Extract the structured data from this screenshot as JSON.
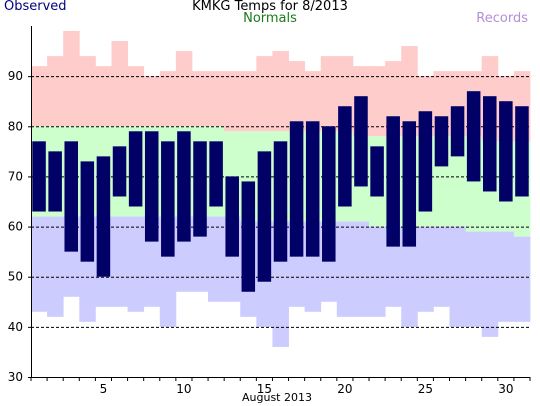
{
  "header": {
    "title": "KMKG Temps for 8/2013",
    "observed_label": "Observed",
    "normals_label": "Normals",
    "records_label": "Records"
  },
  "colors": {
    "observed": "#000066",
    "normals": "#ccffcc",
    "records": "#ffcccc",
    "record_low_band": "#ccccff",
    "grid": "#000000"
  },
  "chart_data": {
    "type": "bar",
    "title": "KMKG Temps for 8/2013",
    "xlabel": "August 2013",
    "ylabel": "",
    "xlim": [
      1,
      31
    ],
    "ylim": [
      30,
      100
    ],
    "x_ticks": [
      5,
      10,
      15,
      20,
      25,
      30
    ],
    "y_ticks": [
      30,
      40,
      50,
      60,
      70,
      80,
      90
    ],
    "grid": true,
    "days": [
      1,
      2,
      3,
      4,
      5,
      6,
      7,
      8,
      9,
      10,
      11,
      12,
      13,
      14,
      15,
      16,
      17,
      18,
      19,
      20,
      21,
      22,
      23,
      24,
      25,
      26,
      27,
      28,
      29,
      30,
      31
    ],
    "series": [
      {
        "name": "Observed",
        "high": [
          77,
          75,
          77,
          73,
          74,
          76,
          79,
          79,
          77,
          79,
          77,
          77,
          70,
          69,
          75,
          77,
          81,
          81,
          80,
          84,
          86,
          76,
          82,
          81,
          83,
          82,
          84,
          87,
          86,
          85,
          84
        ],
        "low": [
          63,
          63,
          55,
          53,
          50,
          66,
          64,
          57,
          54,
          57,
          58,
          64,
          54,
          47,
          49,
          53,
          54,
          54,
          53,
          64,
          68,
          66,
          56,
          56,
          63,
          72,
          74,
          69,
          67,
          65,
          66
        ]
      },
      {
        "name": "Normals",
        "high": [
          80,
          80,
          80,
          80,
          80,
          80,
          80,
          80,
          80,
          80,
          80,
          80,
          79,
          79,
          79,
          79,
          79,
          79,
          79,
          79,
          78,
          78,
          78,
          78,
          78,
          78,
          78,
          78,
          77,
          77,
          77
        ],
        "low": [
          62,
          62,
          62,
          62,
          62,
          62,
          62,
          62,
          62,
          62,
          62,
          62,
          62,
          61,
          61,
          61,
          61,
          61,
          61,
          61,
          61,
          60,
          60,
          60,
          60,
          60,
          60,
          59,
          59,
          59,
          58
        ]
      },
      {
        "name": "Records",
        "high": [
          92,
          94,
          99,
          94,
          92,
          97,
          92,
          90,
          91,
          95,
          91,
          91,
          91,
          91,
          94,
          95,
          93,
          91,
          94,
          94,
          92,
          92,
          93,
          96,
          90,
          91,
          91,
          91,
          94,
          90,
          91
        ],
        "low": [
          43,
          42,
          46,
          41,
          44,
          44,
          43,
          44,
          40,
          47,
          47,
          45,
          45,
          42,
          40,
          36,
          44,
          43,
          45,
          42,
          42,
          42,
          44,
          40,
          43,
          44,
          40,
          40,
          38,
          41,
          41
        ]
      }
    ]
  }
}
